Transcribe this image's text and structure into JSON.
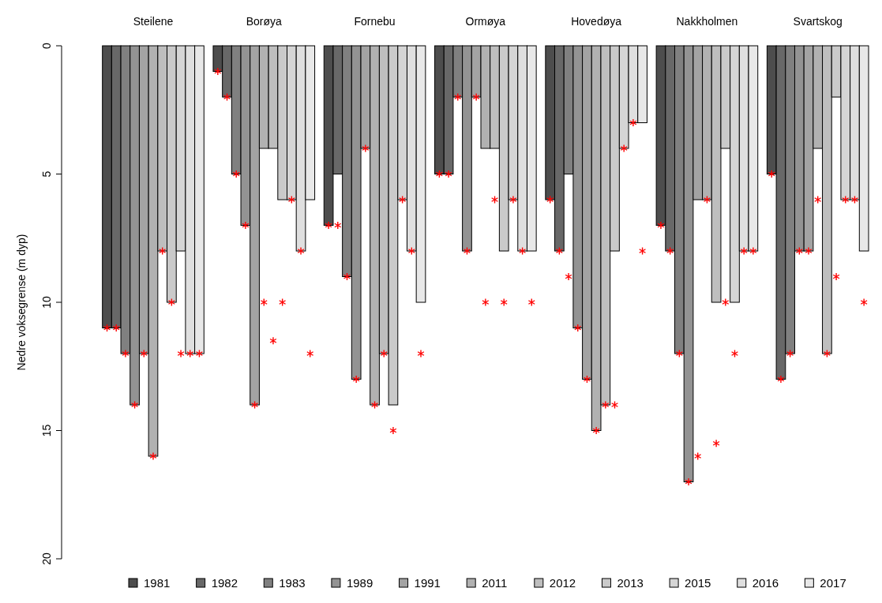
{
  "chart_data": {
    "type": "bar",
    "ylabel": "Nedre voksegrense (m dyp)",
    "categories": [
      "Steilene",
      "Borøya",
      "Fornebu",
      "Ormøya",
      "Hovedøya",
      "Nakkholmen",
      "Svartskog"
    ],
    "ylim": [
      20,
      0
    ],
    "yticks": [
      0,
      5,
      10,
      15,
      20
    ],
    "legend": "bottom",
    "grid": false,
    "marker": "cross",
    "series": [
      {
        "name": "1981",
        "color": "#4d4d4d",
        "values": [
          11,
          1,
          7,
          5,
          6,
          7,
          5
        ]
      },
      {
        "name": "1982",
        "color": "#686868",
        "values": [
          11,
          2,
          5,
          5,
          8,
          8,
          13
        ]
      },
      {
        "name": "1983",
        "color": "#808080",
        "values": [
          12,
          5,
          9,
          2,
          5,
          12,
          12
        ]
      },
      {
        "name": "1989",
        "color": "#939393",
        "values": [
          14,
          7,
          13,
          8,
          11,
          17,
          8
        ]
      },
      {
        "name": "1991",
        "color": "#a3a3a3",
        "values": [
          12,
          14,
          4,
          2,
          13,
          6,
          8
        ]
      },
      {
        "name": "2011",
        "color": "#b1b1b1",
        "values": [
          16,
          4,
          14,
          4,
          15,
          6,
          4
        ]
      },
      {
        "name": "2012",
        "color": "#bebebe",
        "values": [
          8,
          4,
          12,
          4,
          14,
          10,
          12
        ]
      },
      {
        "name": "2013",
        "color": "#cacaca",
        "values": [
          10,
          6,
          14,
          8,
          8,
          4,
          2
        ]
      },
      {
        "name": "2015",
        "color": "#d5d5d5",
        "values": [
          8,
          6,
          6,
          6,
          4,
          10,
          6
        ]
      },
      {
        "name": "2016",
        "color": "#dfdfdf",
        "values": [
          12,
          8,
          8,
          8,
          3,
          8,
          6
        ]
      },
      {
        "name": "2017",
        "color": "#e8e8e8",
        "values": [
          12,
          6,
          10,
          8,
          3,
          8,
          8
        ]
      },
      {
        "type": "scatter",
        "color": "#ff0000",
        "values": [
          11,
          1,
          7,
          5,
          6,
          7,
          5
        ]
      },
      {
        "type": "scatter",
        "color": "#ff0000",
        "values": [
          11,
          2,
          7,
          5,
          8,
          8,
          13
        ]
      },
      {
        "type": "scatter",
        "color": "#ff0000",
        "values": [
          12,
          5,
          9,
          2,
          9,
          12,
          12
        ]
      },
      {
        "type": "scatter",
        "color": "#ff0000",
        "values": [
          14,
          7,
          13,
          8,
          11,
          17,
          8
        ]
      },
      {
        "type": "scatter",
        "color": "#ff0000",
        "values": [
          12,
          14,
          4,
          2,
          13,
          16,
          8
        ]
      },
      {
        "type": "scatter",
        "color": "#ff0000",
        "values": [
          16,
          10,
          14,
          10,
          15,
          6,
          6
        ]
      },
      {
        "type": "scatter",
        "color": "#ff0000",
        "values": [
          8,
          11.5,
          12,
          6,
          14,
          15.5,
          12
        ]
      },
      {
        "type": "scatter",
        "color": "#ff0000",
        "values": [
          10,
          10,
          15,
          10,
          14,
          10,
          9
        ]
      },
      {
        "type": "scatter",
        "color": "#ff0000",
        "values": [
          12,
          6,
          6,
          6,
          4,
          12,
          6
        ]
      },
      {
        "type": "scatter",
        "color": "#ff0000",
        "values": [
          12,
          8,
          8,
          8,
          3,
          8,
          6
        ]
      },
      {
        "type": "scatter",
        "color": "#ff0000",
        "values": [
          12,
          12,
          12,
          10,
          8,
          8,
          10
        ]
      }
    ]
  }
}
